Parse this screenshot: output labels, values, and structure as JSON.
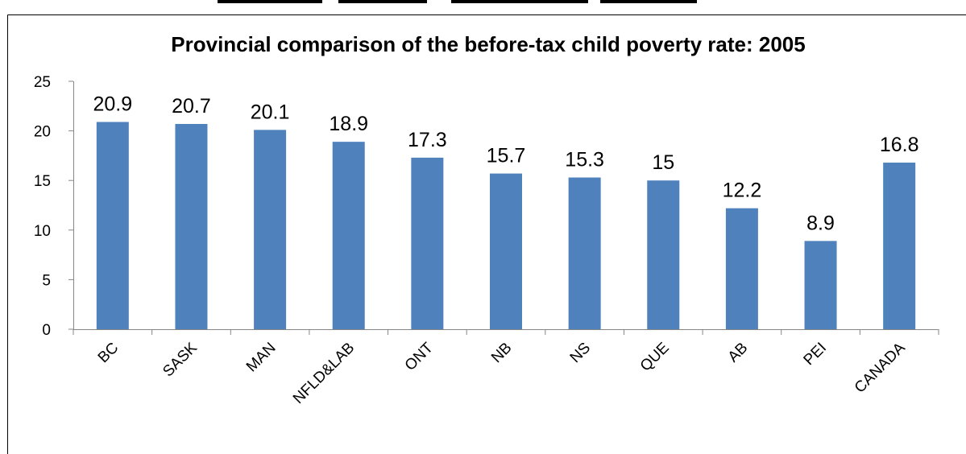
{
  "page": {
    "header_caption": "provincial comparison of the before-tax child poverty rate"
  },
  "chart_data": {
    "type": "bar",
    "title": "Provincial comparison of the before-tax child poverty rate: 2005",
    "xlabel": "",
    "ylabel": "",
    "categories": [
      "BC",
      "SASK",
      "MAN",
      "NFLD&LAB",
      "ONT",
      "NB",
      "NS",
      "QUE",
      "AB",
      "PEI",
      "CANADA"
    ],
    "values": [
      20.9,
      20.7,
      20.1,
      18.9,
      17.3,
      15.7,
      15.3,
      15,
      12.2,
      8.9,
      16.8
    ],
    "value_labels": [
      "20.9",
      "20.7",
      "20.1",
      "18.9",
      "17.3",
      "15.7",
      "15.3",
      "15",
      "12.2",
      "8.9",
      "16.8"
    ],
    "ylim": [
      0,
      25
    ],
    "yticks": [
      "0",
      "5",
      "10",
      "15",
      "20",
      "25"
    ],
    "grid": false,
    "legend": "none",
    "bar_color": "#4F81BD"
  }
}
